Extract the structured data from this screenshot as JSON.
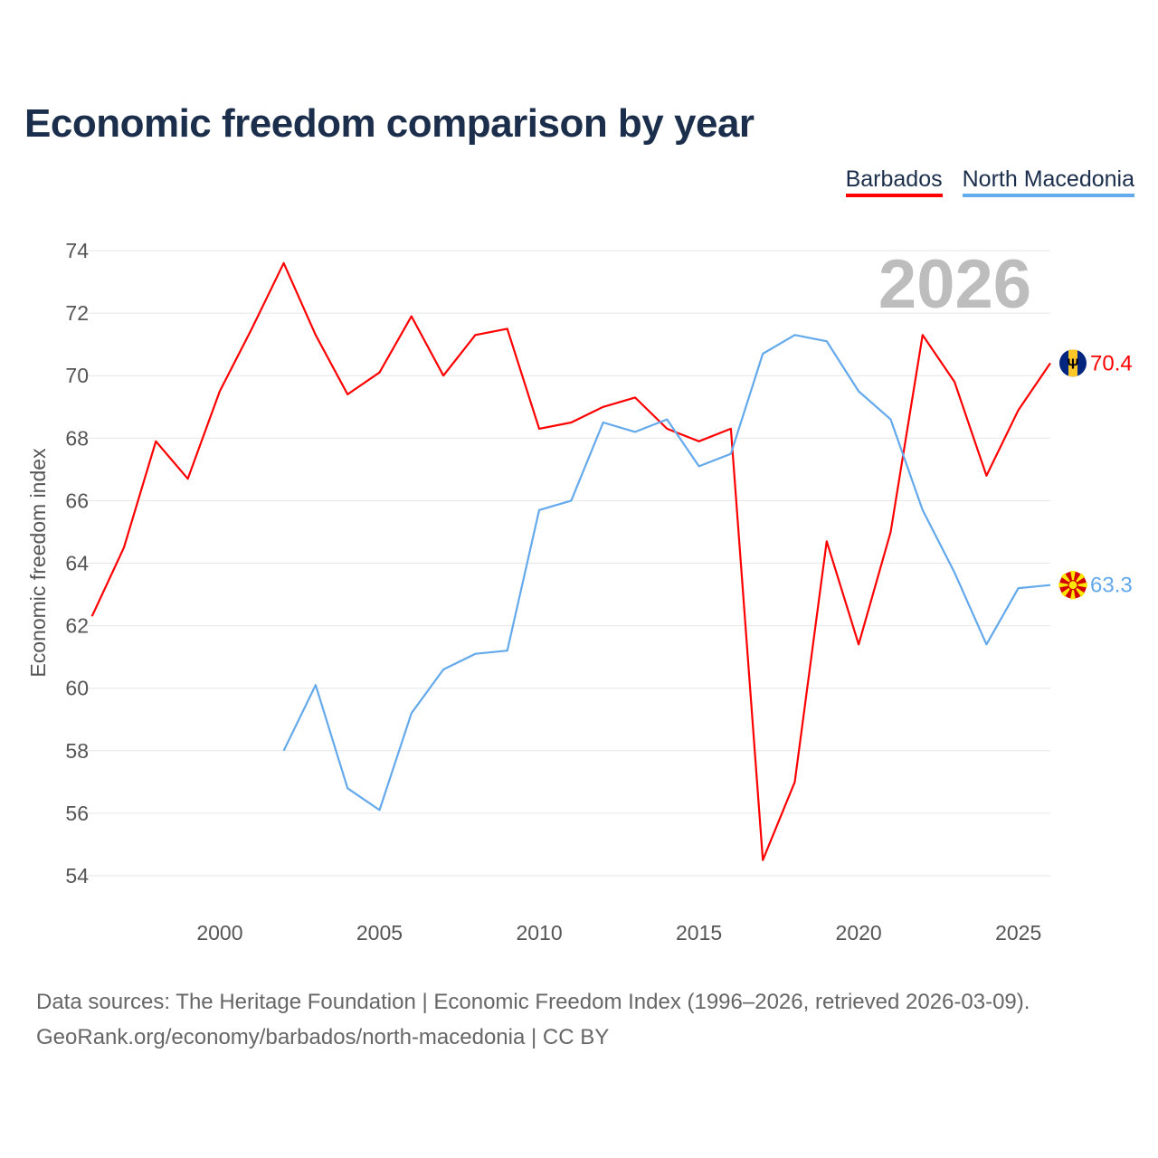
{
  "title": "Economic freedom comparison by year",
  "legend": [
    {
      "label": "Barbados",
      "color": "#ff0000"
    },
    {
      "label": "North Macedonia",
      "color": "#63a9eb"
    }
  ],
  "source_line1": "Data sources: The Heritage Foundation | Economic Freedom Index (1996–2026, retrieved 2026-03-09).",
  "source_line2": "GeoRank.org/economy/barbados/north-macedonia | CC BY",
  "chart_data": {
    "type": "line",
    "title": "Economic freedom comparison by year",
    "ylabel": "Economic freedom index",
    "xlabel": "",
    "year_watermark": "2026",
    "xlim": [
      1996,
      2026
    ],
    "ylim": [
      54,
      74
    ],
    "xticks": [
      2000,
      2005,
      2010,
      2015,
      2020,
      2025
    ],
    "yticks": [
      54,
      56,
      58,
      60,
      62,
      64,
      66,
      68,
      70,
      72,
      74
    ],
    "grid": true,
    "legend_position": "top-right",
    "series": [
      {
        "name": "Barbados",
        "color": "#ff0000",
        "end_label": "70.4",
        "flag": "barbados-flag",
        "x": [
          1996,
          1997,
          1998,
          1999,
          2000,
          2001,
          2002,
          2003,
          2004,
          2005,
          2006,
          2007,
          2008,
          2009,
          2010,
          2011,
          2012,
          2013,
          2014,
          2015,
          2016,
          2017,
          2018,
          2019,
          2020,
          2021,
          2022,
          2023,
          2024,
          2025,
          2026
        ],
        "values": [
          62.3,
          64.5,
          67.9,
          66.7,
          69.5,
          71.5,
          73.6,
          71.3,
          69.4,
          70.1,
          71.9,
          70.0,
          71.3,
          71.5,
          68.3,
          68.5,
          69.0,
          69.3,
          68.3,
          67.9,
          68.3,
          54.5,
          57.0,
          64.7,
          61.4,
          65.0,
          71.3,
          69.8,
          66.8,
          68.9,
          70.4
        ]
      },
      {
        "name": "North Macedonia",
        "color": "#63a9eb",
        "end_label": "63.3",
        "flag": "north-macedonia-flag",
        "x": [
          2002,
          2003,
          2004,
          2005,
          2006,
          2007,
          2008,
          2009,
          2010,
          2011,
          2012,
          2013,
          2014,
          2015,
          2016,
          2017,
          2018,
          2019,
          2020,
          2021,
          2022,
          2023,
          2024,
          2025,
          2026
        ],
        "values": [
          58.0,
          60.1,
          56.8,
          56.1,
          59.2,
          60.6,
          61.1,
          61.2,
          65.7,
          66.0,
          68.5,
          68.2,
          68.6,
          67.1,
          67.5,
          70.7,
          71.3,
          71.1,
          69.5,
          68.6,
          65.7,
          63.7,
          61.4,
          63.2,
          63.3
        ]
      }
    ]
  }
}
